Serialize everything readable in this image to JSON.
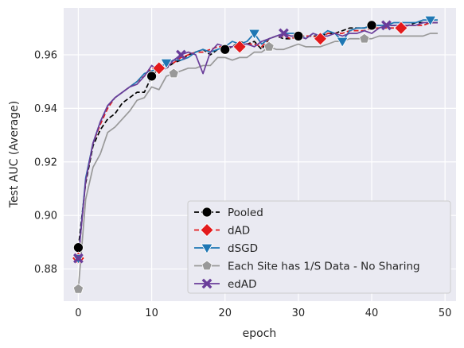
{
  "chart_data": {
    "type": "line",
    "title": "",
    "xlabel": "epoch",
    "ylabel": "Test AUC (Average)",
    "xlim": [
      -2,
      51.5
    ],
    "ylim": [
      0.868,
      0.9775
    ],
    "xticks": [
      0,
      10,
      20,
      30,
      40,
      50
    ],
    "xtick_labels": [
      "0",
      "10",
      "20",
      "30",
      "40",
      "50"
    ],
    "yticks": [
      0.88,
      0.9,
      0.92,
      0.94,
      0.96
    ],
    "ytick_labels": [
      "0.88",
      "0.90",
      "0.92",
      "0.94",
      "0.96"
    ],
    "grid": true,
    "legend_position": "lower-right",
    "background": "#eaeaf2",
    "series": [
      {
        "name": "Pooled",
        "color": "#000000",
        "dash": "6,3",
        "marker": "circle",
        "marker_every": 10,
        "x": [
          0,
          1,
          2,
          3,
          4,
          5,
          6,
          7,
          8,
          9,
          10,
          11,
          12,
          13,
          14,
          15,
          16,
          17,
          18,
          19,
          20,
          21,
          22,
          23,
          24,
          25,
          26,
          27,
          28,
          29,
          30,
          31,
          32,
          33,
          34,
          35,
          36,
          37,
          38,
          39,
          40,
          41,
          42,
          43,
          44,
          45,
          46,
          47,
          48,
          49
        ],
        "values": [
          0.888,
          0.912,
          0.926,
          0.932,
          0.936,
          0.938,
          0.942,
          0.944,
          0.946,
          0.946,
          0.952,
          0.955,
          0.955,
          0.957,
          0.958,
          0.96,
          0.961,
          0.962,
          0.96,
          0.962,
          0.962,
          0.963,
          0.965,
          0.964,
          0.965,
          0.962,
          0.966,
          0.967,
          0.966,
          0.966,
          0.967,
          0.967,
          0.967,
          0.967,
          0.968,
          0.968,
          0.969,
          0.97,
          0.97,
          0.97,
          0.971,
          0.971,
          0.971,
          0.971,
          0.971,
          0.971,
          0.972,
          0.972,
          0.972,
          0.972
        ]
      },
      {
        "name": "dAD",
        "color": "#e31a1c",
        "dash": "6,3",
        "marker": "diamond",
        "marker_every": 11,
        "x": [
          0,
          1,
          2,
          3,
          4,
          5,
          6,
          7,
          8,
          9,
          10,
          11,
          12,
          13,
          14,
          15,
          16,
          17,
          18,
          19,
          20,
          21,
          22,
          23,
          24,
          25,
          26,
          27,
          28,
          29,
          30,
          31,
          32,
          33,
          34,
          35,
          36,
          37,
          38,
          39,
          40,
          41,
          42,
          43,
          44,
          45,
          46,
          47,
          48,
          49
        ],
        "values": [
          0.884,
          0.913,
          0.927,
          0.934,
          0.94,
          0.944,
          0.946,
          0.948,
          0.95,
          0.952,
          0.955,
          0.955,
          0.956,
          0.957,
          0.959,
          0.96,
          0.961,
          0.961,
          0.962,
          0.963,
          0.963,
          0.963,
          0.963,
          0.964,
          0.964,
          0.963,
          0.966,
          0.967,
          0.967,
          0.966,
          0.967,
          0.967,
          0.967,
          0.966,
          0.968,
          0.968,
          0.968,
          0.969,
          0.969,
          0.969,
          0.97,
          0.97,
          0.97,
          0.97,
          0.97,
          0.971,
          0.971,
          0.971,
          0.972,
          0.972
        ]
      },
      {
        "name": "dSGD",
        "color": "#1f77b4",
        "dash": "",
        "marker": "triangle-down",
        "marker_every": 12,
        "x": [
          0,
          1,
          2,
          3,
          4,
          5,
          6,
          7,
          8,
          9,
          10,
          11,
          12,
          13,
          14,
          15,
          16,
          17,
          18,
          19,
          20,
          21,
          22,
          23,
          24,
          25,
          26,
          27,
          28,
          29,
          30,
          31,
          32,
          33,
          34,
          35,
          36,
          37,
          38,
          39,
          40,
          41,
          42,
          43,
          44,
          45,
          46,
          47,
          48,
          49
        ],
        "values": [
          0.884,
          0.914,
          0.927,
          0.935,
          0.941,
          0.944,
          0.946,
          0.948,
          0.95,
          0.953,
          0.954,
          0.955,
          0.957,
          0.958,
          0.958,
          0.959,
          0.961,
          0.962,
          0.961,
          0.962,
          0.963,
          0.965,
          0.964,
          0.965,
          0.968,
          0.964,
          0.966,
          0.967,
          0.968,
          0.968,
          0.968,
          0.966,
          0.968,
          0.967,
          0.969,
          0.968,
          0.965,
          0.969,
          0.97,
          0.97,
          0.971,
          0.971,
          0.971,
          0.972,
          0.972,
          0.972,
          0.972,
          0.973,
          0.973,
          0.973
        ]
      },
      {
        "name": "Each Site has 1/S Data - No Sharing",
        "color": "#999999",
        "dash": "",
        "marker": "pentagon",
        "marker_every": 13,
        "x": [
          0,
          1,
          2,
          3,
          4,
          5,
          6,
          7,
          8,
          9,
          10,
          11,
          12,
          13,
          14,
          15,
          16,
          17,
          18,
          19,
          20,
          21,
          22,
          23,
          24,
          25,
          26,
          27,
          28,
          29,
          30,
          31,
          32,
          33,
          34,
          35,
          36,
          37,
          38,
          39,
          40,
          41,
          42,
          43,
          44,
          45,
          46,
          47,
          48,
          49
        ],
        "values": [
          0.8725,
          0.906,
          0.918,
          0.923,
          0.931,
          0.933,
          0.936,
          0.939,
          0.943,
          0.944,
          0.948,
          0.947,
          0.952,
          0.953,
          0.954,
          0.955,
          0.955,
          0.956,
          0.956,
          0.959,
          0.959,
          0.958,
          0.959,
          0.959,
          0.961,
          0.961,
          0.963,
          0.962,
          0.962,
          0.963,
          0.964,
          0.963,
          0.963,
          0.963,
          0.964,
          0.965,
          0.965,
          0.966,
          0.966,
          0.966,
          0.966,
          0.967,
          0.967,
          0.967,
          0.967,
          0.967,
          0.967,
          0.967,
          0.968,
          0.968
        ]
      },
      {
        "name": "edAD",
        "color": "#6a3d9a",
        "dash": "",
        "marker": "x",
        "marker_every": 14,
        "x": [
          0,
          1,
          2,
          3,
          4,
          5,
          6,
          7,
          8,
          9,
          10,
          11,
          12,
          13,
          14,
          15,
          16,
          17,
          18,
          19,
          20,
          21,
          22,
          23,
          24,
          25,
          26,
          27,
          28,
          29,
          30,
          31,
          32,
          33,
          34,
          35,
          36,
          37,
          38,
          39,
          40,
          41,
          42,
          43,
          44,
          45,
          46,
          47,
          48,
          49
        ],
        "values": [
          0.884,
          0.913,
          0.927,
          0.935,
          0.941,
          0.944,
          0.946,
          0.948,
          0.949,
          0.952,
          0.956,
          0.954,
          0.955,
          0.958,
          0.96,
          0.961,
          0.96,
          0.953,
          0.961,
          0.964,
          0.963,
          0.963,
          0.964,
          0.964,
          0.963,
          0.965,
          0.966,
          0.967,
          0.968,
          0.967,
          0.967,
          0.966,
          0.968,
          0.967,
          0.967,
          0.968,
          0.967,
          0.968,
          0.968,
          0.969,
          0.968,
          0.97,
          0.971,
          0.971,
          0.971,
          0.971,
          0.971,
          0.972,
          0.972,
          0.972
        ]
      }
    ]
  }
}
